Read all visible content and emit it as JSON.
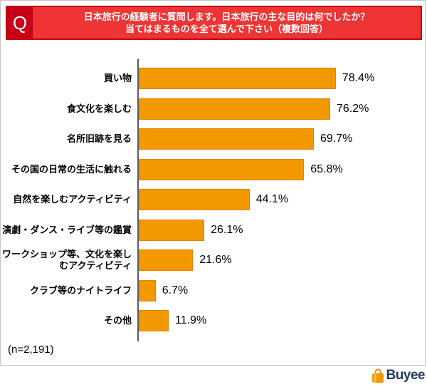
{
  "header": {
    "q_label": "Q",
    "title_line1": "日本旅行の経験者に質問します。日本旅行の主な目的は何でしたか？",
    "title_line2": "当てはまるものを全て選んで下さい（複数回答）"
  },
  "chart_data": {
    "type": "bar",
    "orientation": "horizontal",
    "title": "日本旅行の主な目的（複数回答）",
    "categories": [
      "買い物",
      "食文化を楽しむ",
      "名所旧跡を見る",
      "その国の日常の生活に触れる",
      "自然を楽しむアクティビティ",
      "演劇・ダンス・ライブ等の鑑賞",
      "ワークショップ等、文化を楽しむアクティビティ",
      "クラブ等のナイトライフ",
      "その他"
    ],
    "values": [
      78.4,
      76.2,
      69.7,
      65.8,
      44.1,
      26.1,
      21.6,
      6.7,
      11.9
    ],
    "value_labels": [
      "78.4%",
      "76.2%",
      "69.7%",
      "65.8%",
      "44.1%",
      "26.1%",
      "21.6%",
      "6.7%",
      "11.9%"
    ],
    "xlim": [
      0,
      100
    ],
    "grid": false,
    "legend": false,
    "bar_color": "#f39800"
  },
  "footer": {
    "sample_size": "(n=2,191)"
  },
  "logo": {
    "text": "Buyee"
  },
  "colors": {
    "banner-bg": "#ee3434",
    "banner-border": "#c00314",
    "q-bg": "#c70017",
    "bar": "#f39800",
    "bar-border": "#e28300",
    "axis": "#5b5b5b",
    "frame-border": "#c4c4c4",
    "logo-navy": "#25395f",
    "logo-orange": "#f39800"
  }
}
